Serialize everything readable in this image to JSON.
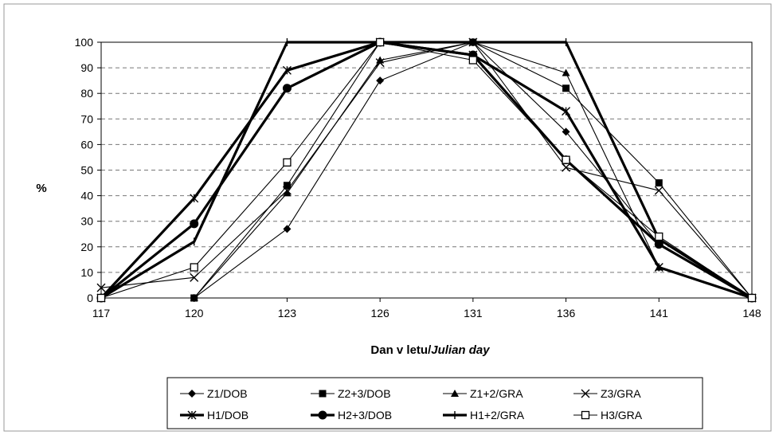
{
  "chart_data": {
    "type": "line",
    "title": "",
    "xlabel_main": "Dan v letu/",
    "xlabel_italic": "Julian day",
    "ylabel": "%",
    "x": [
      "117",
      "120",
      "123",
      "126",
      "131",
      "136",
      "141",
      "148"
    ],
    "ylim": [
      0,
      100
    ],
    "yticks": [
      0,
      10,
      20,
      30,
      40,
      50,
      60,
      70,
      80,
      90,
      100
    ],
    "grid": "horizontal dashed",
    "legend_position": "bottom",
    "series": [
      {
        "name": "Z1/DOB",
        "marker": "diamond",
        "heavy": false,
        "values": [
          0,
          0,
          27,
          85,
          100,
          65,
          21,
          0
        ]
      },
      {
        "name": "Z2+3/DOB",
        "marker": "square",
        "heavy": false,
        "values": [
          0,
          0,
          44,
          100,
          100,
          82,
          45,
          0
        ]
      },
      {
        "name": "Z1+2/GRA",
        "marker": "triangle",
        "heavy": false,
        "values": [
          0,
          0,
          41,
          93,
          100,
          88,
          12,
          0
        ]
      },
      {
        "name": "Z3/GRA",
        "marker": "x",
        "heavy": false,
        "values": [
          4,
          8,
          42,
          92,
          100,
          51,
          42,
          0
        ]
      },
      {
        "name": "H1/DOB",
        "marker": "star",
        "heavy": true,
        "values": [
          0,
          39,
          89,
          100,
          95,
          73,
          12,
          0
        ]
      },
      {
        "name": "H2+3/DOB",
        "marker": "circle",
        "heavy": true,
        "values": [
          0,
          29,
          82,
          100,
          95,
          54,
          21,
          0
        ]
      },
      {
        "name": "H1+2/GRA",
        "marker": "plus",
        "heavy": true,
        "values": [
          0,
          22,
          100,
          100,
          100,
          100,
          23,
          0
        ]
      },
      {
        "name": "H3/GRA",
        "marker": "square-open",
        "heavy": false,
        "values": [
          0,
          12,
          53,
          100,
          93,
          54,
          24,
          0
        ]
      }
    ]
  }
}
